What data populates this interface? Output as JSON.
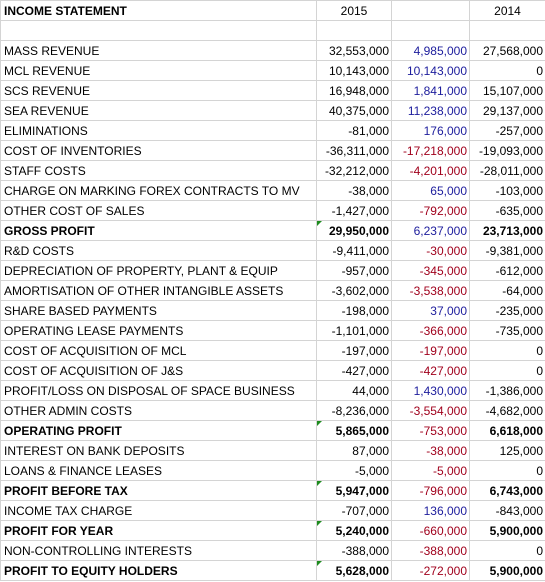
{
  "header": {
    "title": "INCOME STATEMENT",
    "year_a": "2015",
    "year_b": "",
    "year_c": "2014"
  },
  "colors": {
    "blue_values": "#1c1c9c",
    "red_values": "#a0001c",
    "flag": "#1e8c1e"
  },
  "rows": [
    {
      "label": "MASS REVENUE",
      "a": "32,553,000",
      "b": "4,985,000",
      "c": "27,568,000"
    },
    {
      "label": "MCL REVENUE",
      "a": "10,143,000",
      "b": "10,143,000",
      "c": "0"
    },
    {
      "label": "SCS REVENUE",
      "a": "16,948,000",
      "b": "1,841,000",
      "c": "15,107,000"
    },
    {
      "label": "SEA REVENUE",
      "a": "40,375,000",
      "b": "11,238,000",
      "c": "29,137,000"
    },
    {
      "label": "ELIMINATIONS",
      "a": "-81,000",
      "b": "176,000",
      "c": "-257,000"
    },
    {
      "label": "COST OF INVENTORIES",
      "a": "-36,311,000",
      "b": "-17,218,000",
      "c": "-19,093,000"
    },
    {
      "label": "STAFF COSTS",
      "a": "-32,212,000",
      "b": "-4,201,000",
      "c": "-28,011,000"
    },
    {
      "label": "CHARGE ON MARKING FOREX CONTRACTS TO MV",
      "a": "-38,000",
      "b": "65,000",
      "c": "-103,000"
    },
    {
      "label": "OTHER COST OF SALES",
      "a": "-1,427,000",
      "b": "-792,000",
      "c": "-635,000"
    },
    {
      "label": "GROSS PROFIT",
      "a": "29,950,000",
      "b": "6,237,000",
      "c": "23,713,000"
    },
    {
      "label": "R&D COSTS",
      "a": "-9,411,000",
      "b": "-30,000",
      "c": "-9,381,000"
    },
    {
      "label": "DEPRECIATION OF PROPERTY, PLANT & EQUIP",
      "a": "-957,000",
      "b": "-345,000",
      "c": "-612,000"
    },
    {
      "label": "AMORTISATION OF OTHER INTANGIBLE ASSETS",
      "a": "-3,602,000",
      "b": "-3,538,000",
      "c": "-64,000"
    },
    {
      "label": "SHARE BASED PAYMENTS",
      "a": "-198,000",
      "b": "37,000",
      "c": "-235,000"
    },
    {
      "label": "OPERATING LEASE PAYMENTS",
      "a": "-1,101,000",
      "b": "-366,000",
      "c": "-735,000"
    },
    {
      "label": "COST OF ACQUISITION OF MCL",
      "a": "-197,000",
      "b": "-197,000",
      "c": "0"
    },
    {
      "label": "COST OF ACQUISITION OF J&S",
      "a": "-427,000",
      "b": "-427,000",
      "c": "0"
    },
    {
      "label": "PROFIT/LOSS ON DISPOSAL OF SPACE BUSINESS",
      "a": "44,000",
      "b": "1,430,000",
      "c": "-1,386,000"
    },
    {
      "label": "OTHER ADMIN COSTS",
      "a": "-8,236,000",
      "b": "-3,554,000",
      "c": "-4,682,000"
    },
    {
      "label": "OPERATING PROFIT",
      "a": "5,865,000",
      "b": "-753,000",
      "c": "6,618,000"
    },
    {
      "label": "INTEREST ON BANK DEPOSITS",
      "a": "87,000",
      "b": "-38,000",
      "c": "125,000"
    },
    {
      "label": "LOANS & FINANCE LEASES",
      "a": "-5,000",
      "b": "-5,000",
      "c": "0"
    },
    {
      "label": "PROFIT BEFORE TAX",
      "a": "5,947,000",
      "b": "-796,000",
      "c": "6,743,000"
    },
    {
      "label": "INCOME TAX CHARGE",
      "a": "-707,000",
      "b": "136,000",
      "c": "-843,000"
    },
    {
      "label": "PROFIT FOR YEAR",
      "a": "5,240,000",
      "b": "-660,000",
      "c": "5,900,000"
    },
    {
      "label": "NON-CONTROLLING INTERESTS",
      "a": "-388,000",
      "b": "-388,000",
      "c": "0"
    },
    {
      "label": "PROFIT TO EQUITY HOLDERS",
      "a": "5,628,000",
      "b": "-272,000",
      "c": "5,900,000"
    }
  ]
}
